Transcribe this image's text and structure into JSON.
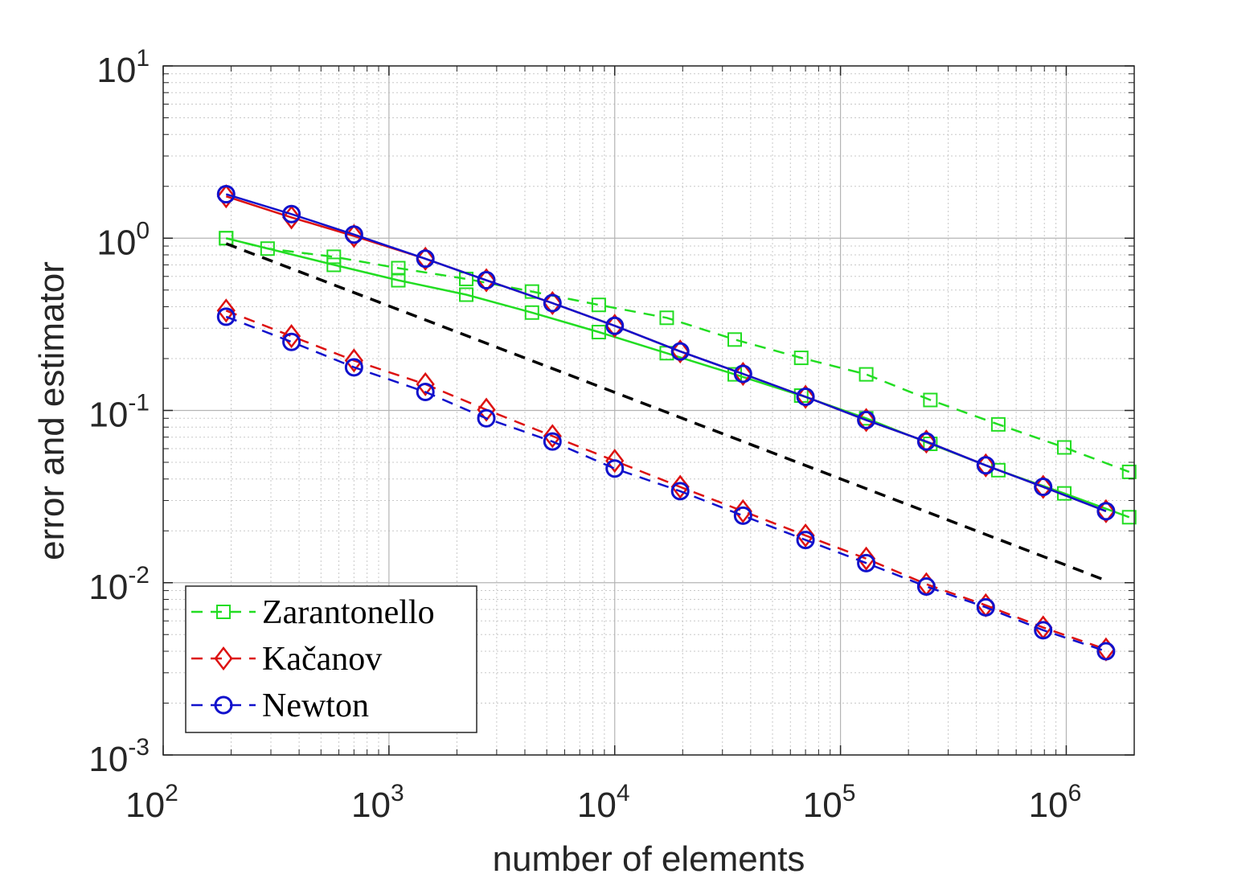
{
  "chart_data": {
    "type": "line",
    "scale": {
      "x": "log",
      "y": "log"
    },
    "xlabel": "number of elements",
    "ylabel": "error and estimator",
    "xlim": [
      100,
      2000000
    ],
    "ylim": [
      0.001,
      10
    ],
    "xticks": [
      {
        "base": "10",
        "exp": "2",
        "value": 100
      },
      {
        "base": "10",
        "exp": "3",
        "value": 1000
      },
      {
        "base": "10",
        "exp": "4",
        "value": 10000
      },
      {
        "base": "10",
        "exp": "5",
        "value": 100000
      },
      {
        "base": "10",
        "exp": "6",
        "value": 1000000
      }
    ],
    "yticks": [
      {
        "base": "10",
        "exp": "-3",
        "value": 0.001
      },
      {
        "base": "10",
        "exp": "-2",
        "value": 0.01
      },
      {
        "base": "10",
        "exp": "-1",
        "value": 0.1
      },
      {
        "base": "10",
        "exp": "0",
        "value": 1
      },
      {
        "base": "10",
        "exp": "1",
        "value": 10
      }
    ],
    "grid": true,
    "minor_grid": true,
    "legend_position": "bottom-left",
    "legend": [
      {
        "label": "Zarantonello",
        "color": "#22dd22",
        "marker": "square"
      },
      {
        "label": "Kačanov",
        "color": "#dd1111",
        "marker": "diamond"
      },
      {
        "label": "Newton",
        "color": "#1111cc",
        "marker": "circle"
      }
    ],
    "series": [
      {
        "name": "Zarantonello error",
        "color": "#22dd22",
        "marker": "square",
        "dash": false,
        "x": [
          190,
          570,
          1100,
          2200,
          4300,
          8500,
          17000,
          34000,
          67000,
          130000,
          250000,
          500000,
          980000,
          1900000
        ],
        "y": [
          1.0,
          0.7,
          0.57,
          0.47,
          0.37,
          0.285,
          0.215,
          0.162,
          0.122,
          0.09,
          0.064,
          0.045,
          0.033,
          0.024
        ]
      },
      {
        "name": "Zarantonello estimator",
        "color": "#22dd22",
        "marker": "square",
        "dash": true,
        "x": [
          190,
          290,
          570,
          1100,
          2200,
          4300,
          8500,
          17000,
          34000,
          67000,
          130000,
          250000,
          500000,
          980000,
          1900000
        ],
        "y": [
          1.0,
          0.87,
          0.78,
          0.67,
          0.58,
          0.49,
          0.41,
          0.345,
          0.258,
          0.202,
          0.162,
          0.115,
          0.083,
          0.061,
          0.044
        ]
      },
      {
        "name": "Kačanov error",
        "color": "#dd1111",
        "marker": "diamond",
        "dash": false,
        "x": [
          190,
          370,
          700,
          1450,
          2700,
          5300,
          10000,
          19500,
          37000,
          70000,
          130000,
          240000,
          440000,
          790000,
          1500000
        ],
        "y": [
          1.75,
          1.32,
          1.03,
          0.76,
          0.57,
          0.42,
          0.31,
          0.22,
          0.163,
          0.12,
          0.088,
          0.066,
          0.048,
          0.036,
          0.026
        ]
      },
      {
        "name": "Newton error",
        "color": "#1111cc",
        "marker": "circle",
        "dash": false,
        "x": [
          190,
          370,
          700,
          1450,
          2700,
          5300,
          10000,
          19500,
          37000,
          70000,
          130000,
          240000,
          440000,
          790000,
          1500000
        ],
        "y": [
          1.8,
          1.38,
          1.05,
          0.76,
          0.57,
          0.42,
          0.31,
          0.22,
          0.163,
          0.12,
          0.088,
          0.066,
          0.048,
          0.036,
          0.026
        ]
      },
      {
        "name": "Kačanov estimator",
        "color": "#dd1111",
        "marker": "diamond",
        "dash": true,
        "x": [
          190,
          370,
          700,
          1450,
          2700,
          5300,
          10000,
          19500,
          37000,
          70000,
          130000,
          240000,
          440000,
          790000,
          1500000
        ],
        "y": [
          0.38,
          0.27,
          0.195,
          0.142,
          0.101,
          0.071,
          0.051,
          0.036,
          0.026,
          0.0188,
          0.0138,
          0.0098,
          0.0074,
          0.0055,
          0.0041
        ]
      },
      {
        "name": "Newton estimator",
        "color": "#1111cc",
        "marker": "circle",
        "dash": true,
        "x": [
          190,
          370,
          700,
          1450,
          2700,
          5300,
          10000,
          19500,
          37000,
          70000,
          130000,
          240000,
          440000,
          790000,
          1500000
        ],
        "y": [
          0.35,
          0.25,
          0.178,
          0.128,
          0.09,
          0.066,
          0.046,
          0.034,
          0.0245,
          0.0177,
          0.013,
          0.0095,
          0.0072,
          0.0053,
          0.004
        ]
      },
      {
        "name": "reference slope",
        "color": "#000000",
        "marker": "none",
        "dash": true,
        "x": [
          190,
          1500000
        ],
        "y": [
          0.93,
          0.0103
        ]
      }
    ]
  }
}
